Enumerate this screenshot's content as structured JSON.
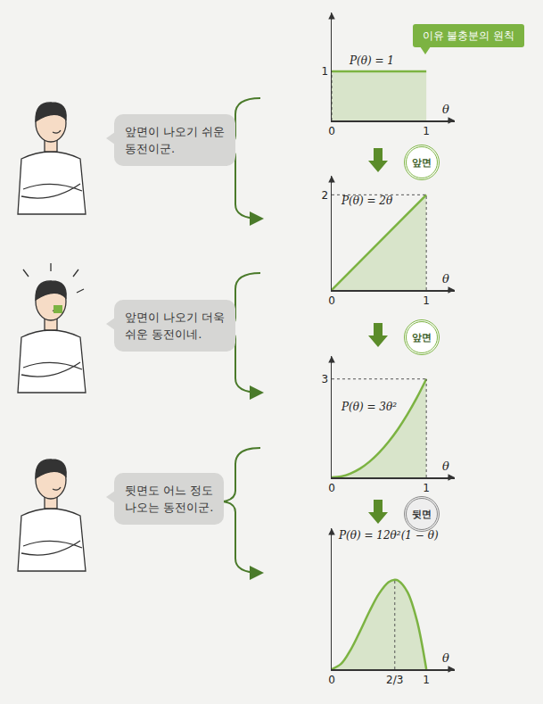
{
  "principle_label": "이유 불충분의 원칙",
  "speech": [
    "앞면이 나오기 쉬운\n동전이군.",
    "앞면이 나오기 더욱\n쉬운 동전이네.",
    "뒷면도 어느 정도\n나오는 동전이군."
  ],
  "steps": [
    "앞면",
    "앞면",
    "뒷면"
  ],
  "chart_data": [
    {
      "type": "area",
      "annotation": "P(θ) = 1",
      "x_label": "θ",
      "color": "#7cb342",
      "grid": false,
      "x": [
        0,
        1
      ],
      "values": [
        1,
        1
      ],
      "xlim": [
        0,
        1.3
      ],
      "ylim": [
        0,
        2.2
      ],
      "xticks": [
        0,
        1
      ],
      "yticks": [
        1
      ]
    },
    {
      "type": "area",
      "annotation": "P(θ) = 2θ",
      "x_label": "θ",
      "color": "#7cb342",
      "grid": false,
      "x": [
        0,
        1
      ],
      "values": [
        0,
        2
      ],
      "xlim": [
        0,
        1.3
      ],
      "ylim": [
        0,
        2.4
      ],
      "xticks": [
        0,
        1
      ],
      "yticks": [
        2
      ]
    },
    {
      "type": "area",
      "annotation": "P(θ) = 3θ²",
      "x_label": "θ",
      "color": "#7cb342",
      "grid": false,
      "x": [
        0,
        0.1,
        0.2,
        0.3,
        0.4,
        0.5,
        0.6,
        0.7,
        0.8,
        0.9,
        1
      ],
      "values": [
        0,
        0.03,
        0.12,
        0.27,
        0.48,
        0.75,
        1.08,
        1.47,
        1.92,
        2.43,
        3
      ],
      "xlim": [
        0,
        1.3
      ],
      "ylim": [
        0,
        3.7
      ],
      "xticks": [
        0,
        1
      ],
      "yticks": [
        3
      ]
    },
    {
      "type": "area",
      "annotation": "P(θ) = 12θ²(1 − θ)",
      "x_label": "θ",
      "color": "#7cb342",
      "grid": false,
      "x": [
        0,
        0.1,
        0.2,
        0.3,
        0.4,
        0.5,
        0.6,
        0.6667,
        0.7,
        0.8,
        0.9,
        1
      ],
      "values": [
        0,
        0.108,
        0.384,
        0.756,
        1.152,
        1.5,
        1.728,
        1.778,
        1.764,
        1.536,
        0.972,
        0
      ],
      "xlim": [
        0,
        1.3
      ],
      "ylim": [
        0,
        2.8
      ],
      "xticks": [
        0,
        {
          "value": 0.6667,
          "label": "2/3"
        },
        1
      ],
      "yticks": []
    }
  ]
}
